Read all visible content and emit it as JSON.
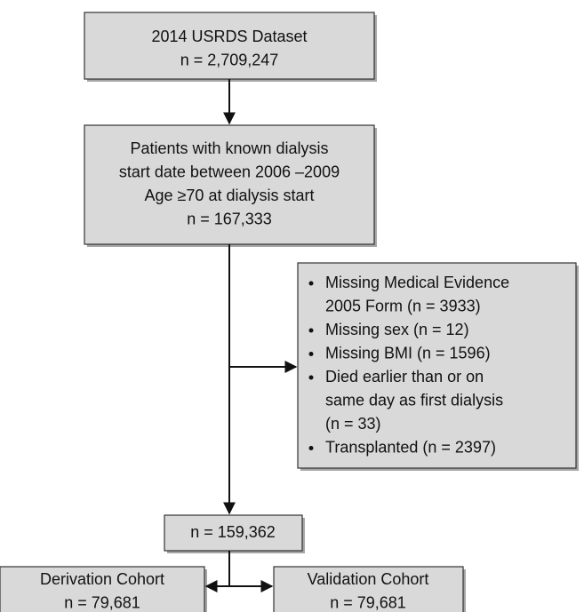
{
  "nodes": [
    {
      "lines": [
        "2014 USRDS Dataset",
        "n = 2,709,247"
      ]
    },
    {
      "lines": [
        "Patients with known dialysis",
        "start date between 2006 –2009",
        "Age ≥70 at dialysis start",
        "n = 167,333"
      ]
    },
    {
      "items": [
        [
          "Missing Medical Evidence",
          "2005 Form (n = 3933)"
        ],
        [
          "Missing sex (n = 12)"
        ],
        [
          "Missing BMI (n = 1596)"
        ],
        [
          "Died earlier than or on",
          "same day as first dialysis",
          "(n = 33)"
        ],
        [
          "Transplanted (n = 2397)"
        ]
      ]
    },
    {
      "lines": [
        "n = 159,362"
      ]
    },
    {
      "lines": [
        "Derivation Cohort",
        "n = 79,681"
      ]
    },
    {
      "lines": [
        "Validation Cohort",
        "n = 79,681"
      ]
    }
  ]
}
